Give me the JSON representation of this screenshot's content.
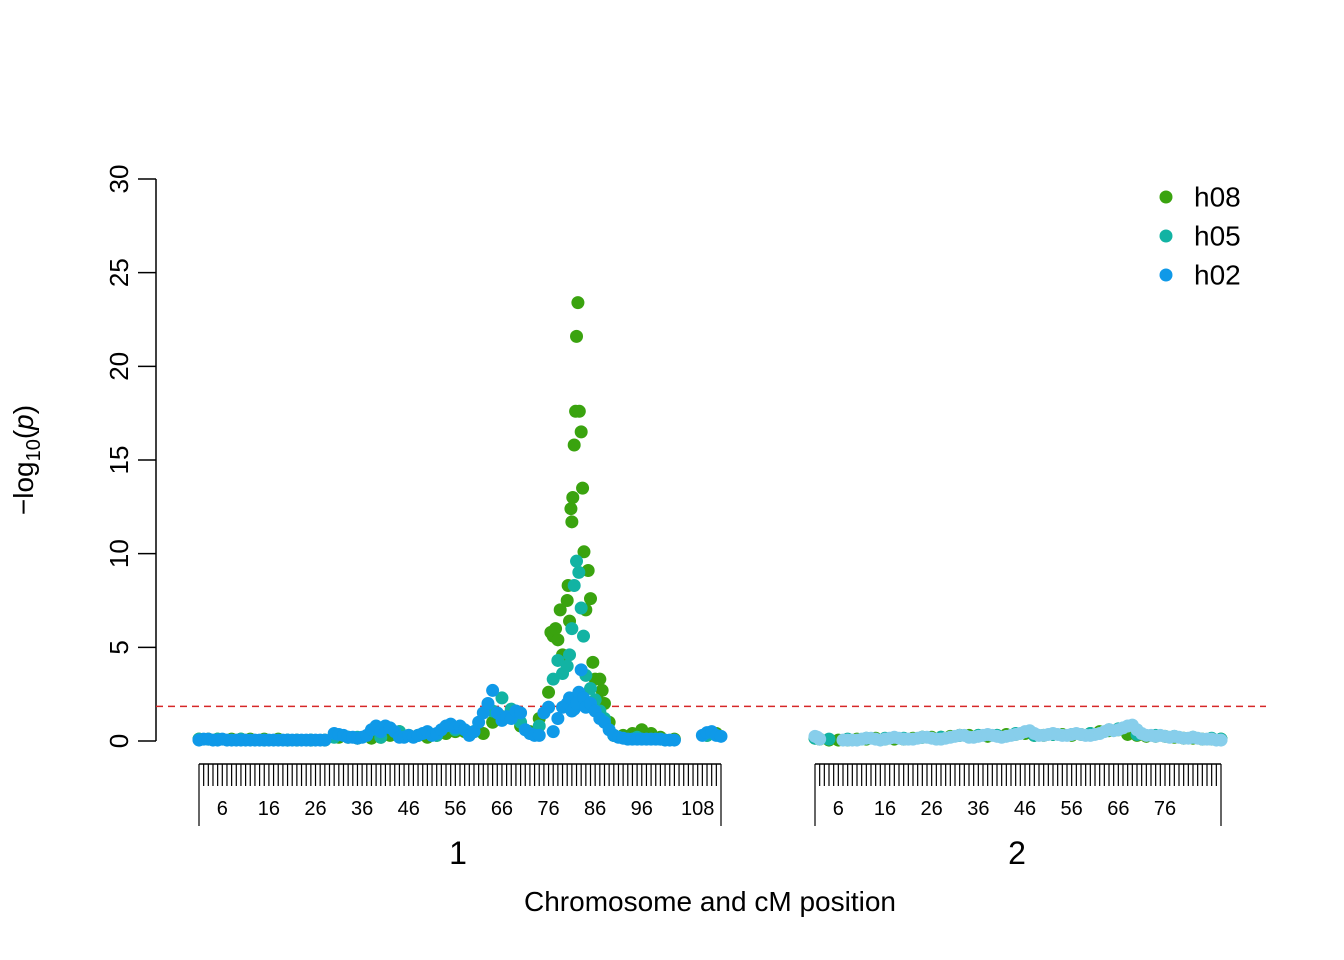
{
  "chart_data": {
    "type": "scatter",
    "title": "",
    "xlabel": "Chromosome and cM position",
    "ylabel_main": "−log",
    "ylabel_sub": "10",
    "ylabel_paren_open": "(",
    "ylabel_var": "p",
    "ylabel_paren_close": ")",
    "ylim": [
      0,
      30
    ],
    "yticks": [
      "0",
      "5",
      "10",
      "15",
      "20",
      "25",
      "30"
    ],
    "threshold": 1.85,
    "threshold_color": "#d62728",
    "legend_position": "top-right",
    "chromosomes": [
      {
        "name": "1",
        "start_cM": 1,
        "end_cM": 113,
        "tick_labels": [
          "6",
          "16",
          "26",
          "36",
          "46",
          "56",
          "66",
          "76",
          "86",
          "96",
          "108"
        ]
      },
      {
        "name": "2",
        "start_cM": 1,
        "end_cM": 88,
        "tick_labels": [
          "6",
          "16",
          "26",
          "36",
          "46",
          "56",
          "66",
          "76"
        ]
      }
    ],
    "series": [
      {
        "name": "h08",
        "color": "#3aa30f",
        "chr1": {
          "x": [
            1,
            3,
            5,
            8,
            10,
            12,
            15,
            18,
            20,
            22,
            25,
            28,
            31,
            33,
            35,
            38,
            40,
            42,
            44,
            46,
            48,
            50,
            52,
            54,
            56,
            58,
            60,
            62,
            64,
            66,
            68,
            70,
            72,
            74,
            76,
            76.5,
            77,
            77.5,
            78,
            78.5,
            79,
            79.5,
            80,
            80.2,
            80.5,
            80.8,
            81,
            81.2,
            81.5,
            81.8,
            82,
            82.3,
            82.6,
            83,
            83.3,
            83.6,
            84,
            84.5,
            85,
            85.5,
            86,
            86.5,
            87,
            87.5,
            88,
            89,
            90,
            92,
            94,
            96,
            98,
            100,
            103,
            110,
            112
          ],
          "y": [
            0.1,
            0.1,
            0.1,
            0.1,
            0.1,
            0.1,
            0.1,
            0.1,
            0.05,
            0.05,
            0.05,
            0.05,
            0.2,
            0.2,
            0.15,
            0.15,
            0.2,
            0.3,
            0.5,
            0.3,
            0.3,
            0.2,
            0.3,
            0.4,
            0.5,
            0.5,
            0.5,
            0.4,
            1.0,
            1.3,
            1.6,
            0.8,
            0.5,
            1.2,
            2.6,
            5.8,
            5.6,
            6.0,
            5.4,
            7.0,
            4.6,
            4.5,
            7.5,
            8.3,
            6.4,
            12.4,
            11.7,
            13.0,
            15.8,
            17.6,
            21.6,
            23.4,
            17.6,
            16.5,
            13.5,
            10.1,
            7.0,
            9.1,
            7.6,
            4.2,
            3.3,
            2.2,
            3.3,
            2.7,
            2.0,
            1.0,
            0.3,
            0.3,
            0.4,
            0.6,
            0.4,
            0.2,
            0.1,
            0.3,
            0.4
          ]
        },
        "chr2": {
          "x": [
            1,
            2,
            4,
            6,
            8,
            10,
            12,
            14,
            16,
            18,
            20,
            22,
            24,
            26,
            28,
            30,
            32,
            34,
            36,
            38,
            40,
            42,
            44,
            46,
            48,
            50,
            52,
            54,
            56,
            58,
            60,
            62,
            64,
            66,
            68,
            70,
            72,
            74,
            76,
            78,
            80,
            82,
            84,
            86,
            88
          ],
          "y": [
            0.15,
            0.1,
            0.05,
            0.05,
            0.05,
            0.1,
            0.1,
            0.15,
            0.1,
            0.1,
            0.1,
            0.15,
            0.2,
            0.2,
            0.2,
            0.25,
            0.3,
            0.3,
            0.3,
            0.25,
            0.3,
            0.35,
            0.35,
            0.4,
            0.3,
            0.3,
            0.35,
            0.35,
            0.3,
            0.35,
            0.4,
            0.5,
            0.55,
            0.6,
            0.35,
            0.3,
            0.25,
            0.25,
            0.25,
            0.2,
            0.15,
            0.15,
            0.1,
            0.1,
            0.1
          ]
        }
      },
      {
        "name": "h05",
        "color": "#12b3a3",
        "chr1": {
          "x": [
            1,
            5,
            10,
            15,
            20,
            25,
            30,
            35,
            40,
            44,
            48,
            52,
            56,
            60,
            64,
            66,
            68,
            70,
            74,
            76,
            77,
            78,
            79,
            80,
            80.5,
            81,
            81.5,
            82,
            82.5,
            83,
            83.5,
            84,
            85,
            86,
            87,
            88,
            90,
            95,
            100,
            110
          ],
          "y": [
            0.1,
            0.1,
            0.1,
            0.05,
            0.05,
            0.05,
            0.2,
            0.2,
            0.2,
            0.5,
            0.3,
            0.3,
            0.6,
            0.5,
            1.6,
            2.3,
            1.7,
            1.0,
            0.8,
            1.8,
            3.3,
            4.3,
            3.6,
            4.0,
            4.6,
            6.0,
            8.3,
            9.6,
            9.0,
            7.1,
            5.6,
            3.5,
            2.8,
            2.2,
            1.6,
            1.2,
            0.3,
            0.2,
            0.1,
            0.3
          ]
        },
        "chr2": {
          "x": [
            1,
            4,
            8,
            12,
            16,
            20,
            24,
            28,
            32,
            36,
            40,
            44,
            48,
            52,
            56,
            60,
            64,
            66,
            70,
            74,
            78,
            82,
            86,
            88
          ],
          "y": [
            0.15,
            0.1,
            0.1,
            0.15,
            0.15,
            0.15,
            0.2,
            0.2,
            0.3,
            0.3,
            0.3,
            0.4,
            0.3,
            0.35,
            0.35,
            0.4,
            0.6,
            0.65,
            0.35,
            0.3,
            0.25,
            0.2,
            0.15,
            0.1
          ]
        }
      },
      {
        "name": "h02",
        "color": "#0f99e8",
        "chr1": {
          "x": [
            1,
            2,
            3,
            4,
            5,
            6,
            7,
            8,
            9,
            10,
            11,
            12,
            13,
            14,
            15,
            16,
            17,
            18,
            19,
            20,
            21,
            22,
            23,
            24,
            25,
            26,
            27,
            28,
            30,
            31,
            32,
            33,
            34,
            35,
            36,
            37,
            38,
            39,
            40,
            41,
            42,
            43,
            44,
            45,
            46,
            47,
            48,
            49,
            50,
            51,
            52,
            53,
            54,
            55,
            56,
            57,
            58,
            59,
            60,
            61,
            62,
            63,
            64,
            65,
            66,
            67,
            68,
            69,
            70,
            71,
            72,
            73,
            74,
            75,
            76,
            77,
            78,
            79,
            80,
            80.5,
            81,
            81.5,
            82,
            82.5,
            83,
            83.5,
            84,
            85,
            86,
            87,
            88,
            89,
            90,
            91,
            92,
            93,
            94,
            95,
            96,
            97,
            98,
            99,
            100,
            101,
            102,
            103,
            109,
            110,
            111,
            112,
            113
          ],
          "y": [
            0.05,
            0.1,
            0.1,
            0.05,
            0.05,
            0.1,
            0.05,
            0.05,
            0.05,
            0.05,
            0.05,
            0.05,
            0.05,
            0.05,
            0.05,
            0.05,
            0.05,
            0.05,
            0.05,
            0.05,
            0.05,
            0.05,
            0.05,
            0.05,
            0.05,
            0.05,
            0.05,
            0.05,
            0.4,
            0.35,
            0.3,
            0.2,
            0.2,
            0.15,
            0.2,
            0.3,
            0.6,
            0.8,
            0.5,
            0.8,
            0.7,
            0.5,
            0.2,
            0.2,
            0.3,
            0.2,
            0.3,
            0.4,
            0.5,
            0.3,
            0.4,
            0.6,
            0.8,
            0.9,
            0.7,
            0.8,
            0.6,
            0.3,
            0.5,
            1.0,
            1.5,
            2.0,
            2.7,
            1.5,
            1.1,
            1.3,
            1.2,
            1.6,
            1.5,
            0.6,
            0.4,
            0.3,
            0.3,
            1.5,
            1.8,
            0.5,
            1.2,
            1.8,
            2.0,
            2.3,
            1.6,
            1.7,
            2.0,
            2.6,
            3.8,
            2.3,
            1.8,
            2.0,
            1.6,
            1.2,
            1.0,
            0.6,
            0.3,
            0.2,
            0.15,
            0.1,
            0.1,
            0.1,
            0.1,
            0.1,
            0.1,
            0.1,
            0.1,
            0.05,
            0.05,
            0.05,
            0.3,
            0.45,
            0.5,
            0.3,
            0.25
          ]
        },
        "chr2": {
          "x": [],
          "y": []
        }
      },
      {
        "name": "",
        "color": "#87ceeb",
        "chr1": {
          "x": [],
          "y": []
        },
        "chr2": {
          "x": [
            1,
            1.5,
            2,
            7,
            8,
            9,
            10,
            11,
            12,
            13,
            14,
            15,
            16,
            17,
            18,
            19,
            20,
            21,
            22,
            23,
            24,
            25,
            26,
            27,
            28,
            29,
            30,
            31,
            32,
            33,
            34,
            35,
            36,
            37,
            38,
            39,
            40,
            41,
            42,
            43,
            44,
            45,
            46,
            47,
            48,
            49,
            50,
            51,
            52,
            53,
            54,
            55,
            56,
            57,
            58,
            59,
            60,
            61,
            62,
            63,
            64,
            65,
            66,
            67,
            68,
            69,
            70,
            71,
            72,
            73,
            74,
            75,
            76,
            77,
            78,
            79,
            80,
            81,
            82,
            83,
            84,
            85,
            86,
            87,
            88
          ],
          "y": [
            0.25,
            0.2,
            0.1,
            0.05,
            0.05,
            0.05,
            0.05,
            0.1,
            0.15,
            0.15,
            0.1,
            0.05,
            0.1,
            0.15,
            0.2,
            0.15,
            0.1,
            0.1,
            0.1,
            0.15,
            0.2,
            0.2,
            0.15,
            0.1,
            0.1,
            0.15,
            0.2,
            0.25,
            0.3,
            0.3,
            0.2,
            0.2,
            0.25,
            0.3,
            0.35,
            0.3,
            0.25,
            0.2,
            0.25,
            0.3,
            0.35,
            0.4,
            0.5,
            0.55,
            0.4,
            0.3,
            0.3,
            0.35,
            0.4,
            0.35,
            0.3,
            0.3,
            0.35,
            0.4,
            0.35,
            0.3,
            0.3,
            0.35,
            0.4,
            0.5,
            0.6,
            0.55,
            0.6,
            0.7,
            0.8,
            0.85,
            0.6,
            0.4,
            0.3,
            0.3,
            0.25,
            0.3,
            0.25,
            0.2,
            0.25,
            0.2,
            0.15,
            0.15,
            0.2,
            0.15,
            0.1,
            0.1,
            0.1,
            0.05,
            0.05
          ]
        }
      }
    ]
  }
}
